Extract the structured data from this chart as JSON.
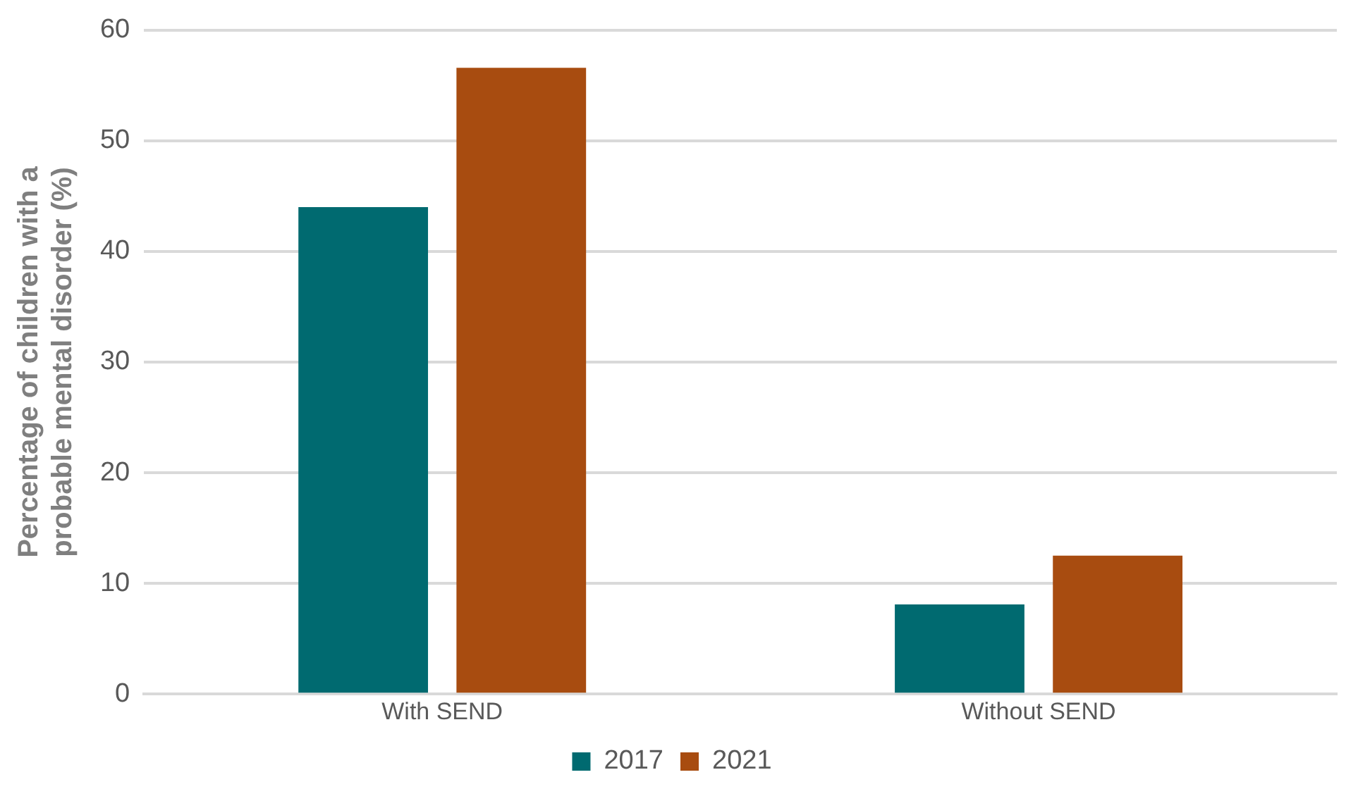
{
  "chart_data": {
    "type": "bar",
    "ylabel": "Percentage of children with a probable mental disorder (%)",
    "categories": [
      "With SEND",
      "Without SEND"
    ],
    "series": [
      {
        "name": "2017",
        "color": "#006a70",
        "values": [
          44,
          8.1
        ]
      },
      {
        "name": "2021",
        "color": "#a84c10",
        "values": [
          56.6,
          12.5
        ]
      }
    ],
    "ylim": [
      0,
      60
    ],
    "yticks": [
      0,
      10,
      20,
      30,
      40,
      50,
      60
    ],
    "grid": "y",
    "legend": "bottom"
  }
}
